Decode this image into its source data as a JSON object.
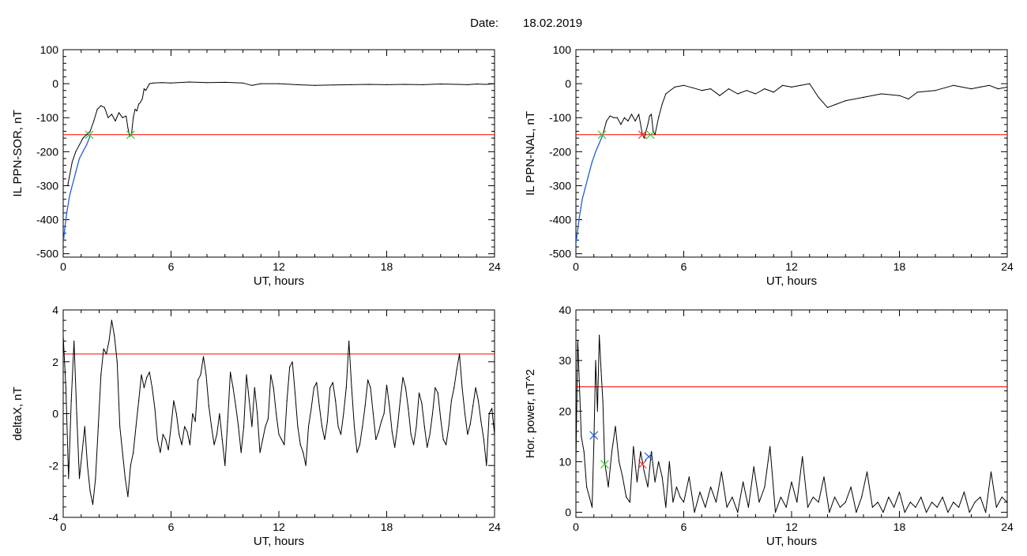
{
  "header": {
    "date_label": "Date:",
    "date_value": "18.02.2019"
  },
  "colors": {
    "axis": "#000000",
    "threshold": "#ff0000",
    "data": "#000000",
    "highlight": "#1f5fd6",
    "marker_green": "#33cc33",
    "marker_red": "#ff3333",
    "marker_blue": "#1f5fd6"
  },
  "chart_data": [
    {
      "id": "sor",
      "type": "line",
      "xlabel": "UT, hours",
      "ylabel": "IL PPN-SOR, nT",
      "xlim": [
        0,
        24
      ],
      "ylim": [
        -510,
        100
      ],
      "xticks": [
        0,
        6,
        12,
        18,
        24
      ],
      "yticks": [
        100,
        0,
        -100,
        -200,
        -300,
        -400,
        -500
      ],
      "threshold": -150,
      "series": [
        {
          "role": "main",
          "x": [
            0.25,
            0.5,
            0.7,
            0.9,
            1.1,
            1.3,
            1.5,
            1.7,
            1.9,
            2.1,
            2.3,
            2.5,
            2.7,
            2.9,
            3.1,
            3.3,
            3.5,
            3.6,
            3.7,
            3.8,
            3.9,
            4.0,
            4.1,
            4.2,
            4.3,
            4.4,
            4.5,
            4.6,
            4.7,
            4.8,
            5.0,
            5.5,
            6,
            7,
            8,
            9,
            10,
            10.5,
            11,
            12,
            13,
            14,
            15,
            16,
            17,
            18,
            19,
            20,
            21,
            22,
            22.5,
            23,
            23.5,
            24
          ],
          "y": [
            -300,
            -230,
            -200,
            -180,
            -160,
            -150,
            -140,
            -110,
            -75,
            -65,
            -70,
            -100,
            -90,
            -110,
            -85,
            -100,
            -95,
            -130,
            -155,
            -150,
            -100,
            -75,
            -80,
            -60,
            -55,
            -45,
            -15,
            -20,
            -10,
            0,
            2,
            3,
            2,
            5,
            3,
            4,
            2,
            -5,
            0,
            0,
            -3,
            -5,
            -4,
            -3,
            -2,
            -3,
            -2,
            -3,
            -1,
            -2,
            -3,
            -1,
            -2,
            0
          ]
        },
        {
          "role": "highlight",
          "x": [
            0,
            0.1,
            0.2,
            0.35,
            0.5,
            0.7,
            0.9,
            1.1,
            1.3,
            1.45,
            1.5
          ],
          "y": [
            -470,
            -420,
            -380,
            -330,
            -300,
            -260,
            -220,
            -200,
            -180,
            -160,
            -150
          ]
        }
      ],
      "markers": [
        {
          "x": 1.45,
          "y": -150,
          "color": "green"
        },
        {
          "x": 3.75,
          "y": -150,
          "color": "green"
        }
      ]
    },
    {
      "id": "nal",
      "type": "line",
      "xlabel": "UT, hours",
      "ylabel": "IL PPN-NAL, nT",
      "xlim": [
        0,
        24
      ],
      "ylim": [
        -510,
        100
      ],
      "xticks": [
        0,
        6,
        12,
        18,
        24
      ],
      "yticks": [
        100,
        0,
        -100,
        -200,
        -300,
        -400,
        -500
      ],
      "threshold": -150,
      "series": [
        {
          "role": "main",
          "x": [
            1.5,
            1.7,
            1.9,
            2.1,
            2.3,
            2.5,
            2.7,
            2.9,
            3.1,
            3.3,
            3.5,
            3.7,
            3.8,
            3.9,
            4.0,
            4.1,
            4.2,
            4.3,
            4.4,
            4.6,
            4.8,
            5.0,
            5.5,
            6.0,
            6.5,
            7.0,
            7.5,
            8.0,
            8.5,
            9.0,
            9.5,
            10.0,
            10.5,
            11.0,
            11.5,
            12.0,
            12.5,
            13.0,
            13.5,
            14.0,
            14.5,
            15.0,
            16.0,
            17.0,
            18.0,
            18.5,
            19.0,
            20.0,
            21.0,
            22.0,
            22.5,
            23.0,
            23.5,
            24.0
          ],
          "y": [
            -150,
            -110,
            -95,
            -100,
            -100,
            -120,
            -100,
            -110,
            -90,
            -110,
            -90,
            -150,
            -160,
            -140,
            -120,
            -95,
            -90,
            -140,
            -150,
            -100,
            -60,
            -30,
            -10,
            -5,
            -12,
            -20,
            -15,
            -35,
            -15,
            -30,
            -20,
            -30,
            -15,
            -25,
            -5,
            -10,
            -5,
            0,
            -40,
            -70,
            -60,
            -50,
            -40,
            -30,
            -35,
            -45,
            -25,
            -20,
            -5,
            -15,
            -10,
            -5,
            -15,
            -10
          ]
        },
        {
          "role": "highlight",
          "x": [
            0,
            0.1,
            0.2,
            0.35,
            0.5,
            0.7,
            0.9,
            1.1,
            1.3,
            1.5
          ],
          "y": [
            -470,
            -430,
            -390,
            -340,
            -310,
            -270,
            -230,
            -200,
            -175,
            -150
          ]
        }
      ],
      "markers": [
        {
          "x": 1.45,
          "y": -150,
          "color": "green"
        },
        {
          "x": 3.7,
          "y": -150,
          "color": "red"
        },
        {
          "x": 4.15,
          "y": -150,
          "color": "green"
        }
      ]
    },
    {
      "id": "deltax",
      "type": "line",
      "xlabel": "UT, hours",
      "ylabel": "deltaX, nT",
      "xlim": [
        0,
        24
      ],
      "ylim": [
        -4,
        4
      ],
      "xticks": [
        0,
        6,
        12,
        18,
        24
      ],
      "yticks": [
        4,
        2,
        0,
        -2,
        -4
      ],
      "threshold": 2.3,
      "series": [
        {
          "role": "main",
          "x": [
            0,
            0.15,
            0.3,
            0.45,
            0.6,
            0.75,
            0.9,
            1.05,
            1.2,
            1.35,
            1.5,
            1.65,
            1.8,
            1.95,
            2.1,
            2.25,
            2.4,
            2.55,
            2.7,
            2.85,
            3.0,
            3.15,
            3.3,
            3.45,
            3.6,
            3.75,
            3.9,
            4.05,
            4.2,
            4.35,
            4.5,
            4.65,
            4.8,
            4.95,
            5.1,
            5.25,
            5.4,
            5.55,
            5.7,
            5.85,
            6.0,
            6.15,
            6.3,
            6.45,
            6.6,
            6.75,
            6.9,
            7.05,
            7.2,
            7.35,
            7.5,
            7.65,
            7.8,
            7.95,
            8.1,
            8.25,
            8.4,
            8.55,
            8.7,
            8.85,
            9.0,
            9.15,
            9.3,
            9.45,
            9.6,
            9.75,
            9.9,
            10.05,
            10.2,
            10.35,
            10.5,
            10.65,
            10.8,
            10.95,
            11.1,
            11.25,
            11.4,
            11.55,
            11.7,
            11.85,
            12.0,
            12.15,
            12.3,
            12.45,
            12.6,
            12.75,
            12.9,
            13.05,
            13.2,
            13.35,
            13.5,
            13.65,
            13.8,
            13.95,
            14.1,
            14.25,
            14.4,
            14.55,
            14.7,
            14.85,
            15.0,
            15.15,
            15.3,
            15.45,
            15.6,
            15.75,
            15.9,
            16.05,
            16.2,
            16.35,
            16.5,
            16.65,
            16.8,
            16.95,
            17.1,
            17.25,
            17.4,
            17.55,
            17.7,
            17.85,
            18.0,
            18.15,
            18.3,
            18.45,
            18.6,
            18.75,
            18.9,
            19.05,
            19.2,
            19.35,
            19.5,
            19.65,
            19.8,
            19.95,
            20.1,
            20.25,
            20.4,
            20.55,
            20.7,
            20.85,
            21.0,
            21.15,
            21.3,
            21.45,
            21.6,
            21.75,
            21.9,
            22.05,
            22.2,
            22.35,
            22.5,
            22.65,
            22.8,
            22.95,
            23.1,
            23.25,
            23.4,
            23.55,
            23.7,
            23.85,
            24.0
          ],
          "y": [
            3.0,
            1.0,
            -2.5,
            0.5,
            2.8,
            0.0,
            -2.5,
            -1.5,
            -0.5,
            -2.0,
            -3.0,
            -3.5,
            -2.5,
            -0.5,
            1.5,
            2.5,
            2.3,
            2.8,
            3.6,
            3.0,
            2.0,
            -0.5,
            -1.5,
            -2.5,
            -3.2,
            -2.0,
            -1.5,
            -0.5,
            0.5,
            1.5,
            1.0,
            1.4,
            1.6,
            1.0,
            0.2,
            -1.0,
            -1.5,
            -0.8,
            -1.0,
            -1.4,
            -0.5,
            0.5,
            0.0,
            -0.8,
            -1.2,
            -0.5,
            -0.7,
            -1.2,
            0.0,
            -0.3,
            1.3,
            1.5,
            2.2,
            1.5,
            0.3,
            -0.5,
            -1.2,
            -0.8,
            0.0,
            -1.0,
            -2.0,
            -0.3,
            1.6,
            1.0,
            0.3,
            -0.5,
            -1.5,
            -0.5,
            1.5,
            0.5,
            -0.5,
            1.0,
            0.0,
            -1.5,
            -1.0,
            -0.5,
            -0.2,
            1.5,
            1.0,
            0.0,
            -0.8,
            -1.0,
            -1.2,
            0.5,
            1.8,
            2.0,
            0.8,
            -0.5,
            -1.2,
            -1.5,
            -2.0,
            -0.5,
            0.2,
            1.0,
            1.2,
            0.3,
            -0.5,
            -1.0,
            -0.3,
            1.0,
            1.2,
            0.5,
            -0.5,
            -0.8,
            0.0,
            1.0,
            2.8,
            1.0,
            -0.5,
            -1.5,
            -1.2,
            -0.5,
            0.3,
            1.3,
            1.0,
            0.0,
            -1.0,
            -0.7,
            -0.3,
            0.0,
            1.1,
            0.3,
            -0.7,
            -1.3,
            -0.5,
            0.5,
            1.4,
            1.0,
            0.2,
            -0.8,
            -1.2,
            -0.5,
            0.8,
            0.4,
            -0.5,
            -1.3,
            -0.8,
            0.0,
            1.0,
            0.8,
            -0.2,
            -1.0,
            -1.2,
            -0.5,
            0.5,
            1.0,
            1.7,
            2.3,
            1.0,
            0.0,
            -0.8,
            -0.4,
            0.3,
            1.0,
            0.5,
            -0.3,
            -1.0,
            -2.0,
            0.0,
            0.2,
            -0.8
          ]
        }
      ],
      "markers": []
    },
    {
      "id": "power",
      "type": "line",
      "xlabel": "UT, hours",
      "ylabel": "Hor. power, nT^2",
      "xlim": [
        0,
        24
      ],
      "ylim": [
        -1,
        40
      ],
      "xticks": [
        0,
        6,
        12,
        18,
        24
      ],
      "yticks": [
        40,
        30,
        20,
        10,
        0
      ],
      "threshold": 24.8,
      "series": [
        {
          "role": "main",
          "x": [
            0,
            0.1,
            0.2,
            0.3,
            0.45,
            0.6,
            0.75,
            0.9,
            1.0,
            1.1,
            1.2,
            1.3,
            1.4,
            1.5,
            1.6,
            1.8,
            2.0,
            2.2,
            2.4,
            2.6,
            2.8,
            3.0,
            3.2,
            3.4,
            3.6,
            3.8,
            4.0,
            4.2,
            4.4,
            4.6,
            4.8,
            5.0,
            5.2,
            5.4,
            5.6,
            5.8,
            6.0,
            6.3,
            6.6,
            6.9,
            7.2,
            7.5,
            7.8,
            8.1,
            8.4,
            8.7,
            9.0,
            9.3,
            9.6,
            9.9,
            10.2,
            10.5,
            10.8,
            11.1,
            11.4,
            11.7,
            12.0,
            12.3,
            12.6,
            12.9,
            13.2,
            13.5,
            13.8,
            14.1,
            14.4,
            14.7,
            15.0,
            15.3,
            15.6,
            15.9,
            16.2,
            16.5,
            16.8,
            17.1,
            17.4,
            17.7,
            18.0,
            18.3,
            18.6,
            18.9,
            19.2,
            19.5,
            19.8,
            20.1,
            20.4,
            20.7,
            21.0,
            21.3,
            21.6,
            21.9,
            22.2,
            22.5,
            22.8,
            23.1,
            23.4,
            23.7,
            24.0
          ],
          "y": [
            10,
            34,
            25,
            15,
            12,
            5,
            3,
            1,
            14,
            30,
            20,
            35,
            28,
            22,
            10,
            5,
            12,
            17,
            10,
            7,
            3,
            2,
            13,
            6,
            12,
            8,
            5,
            12,
            6,
            10,
            7,
            1,
            10,
            2,
            5,
            3,
            2,
            7,
            0,
            4,
            1,
            5,
            2,
            8,
            1,
            3,
            0,
            6,
            1,
            9,
            2,
            5,
            13,
            0,
            3,
            1,
            6,
            2,
            11,
            1,
            3,
            2,
            7,
            0,
            3,
            1,
            2,
            5,
            0,
            3,
            8,
            1,
            2,
            0,
            3,
            1,
            4,
            0,
            2,
            1,
            3,
            0,
            2,
            1,
            3,
            0,
            2,
            1,
            4,
            0,
            2,
            3,
            0,
            8,
            1,
            3,
            2
          ]
        }
      ],
      "markers": [
        {
          "x": 1.0,
          "y": 15.2,
          "color": "blue"
        },
        {
          "x": 1.6,
          "y": 9.5,
          "color": "green"
        },
        {
          "x": 3.7,
          "y": 9.5,
          "color": "red"
        },
        {
          "x": 4.05,
          "y": 11.0,
          "color": "blue"
        }
      ]
    }
  ]
}
